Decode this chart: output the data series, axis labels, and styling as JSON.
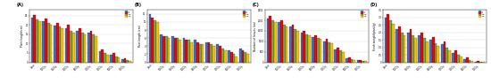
{
  "panels": [
    {
      "label": "(A)",
      "ylabel": "Plant height(cm)",
      "ylim": [
        0,
        28
      ],
      "yticks": [
        0,
        5,
        10,
        15,
        20,
        25
      ],
      "groups": [
        "Cont",
        "100Gy",
        "150Gy",
        "200Gy",
        "250Gy",
        "300Gy",
        "400Gy",
        "500Gy",
        "700Gy"
      ],
      "series": [
        {
          "label": "C-1",
          "color": "#4472C4",
          "values": [
            24.0,
            22.0,
            19.5,
            18.0,
            17.0,
            16.0,
            6.0,
            4.0,
            1.5
          ]
        },
        {
          "label": "C-2",
          "color": "#FF0000",
          "values": [
            25.5,
            23.5,
            21.0,
            20.0,
            18.0,
            17.0,
            7.0,
            5.0,
            2.0
          ]
        },
        {
          "label": "C-1B",
          "color": "#70AD47",
          "values": [
            23.0,
            21.0,
            19.0,
            17.0,
            16.0,
            15.0,
            5.0,
            3.0,
            1.0
          ]
        },
        {
          "label": "C-7B",
          "color": "#FFC000",
          "values": [
            22.0,
            20.0,
            18.0,
            16.0,
            15.0,
            14.0,
            4.0,
            2.5,
            0.5
          ]
        }
      ]
    },
    {
      "label": "(B)",
      "ylabel": "Root length (cm)",
      "ylim": [
        0,
        13
      ],
      "yticks": [
        0,
        2,
        4,
        6,
        8,
        10,
        12
      ],
      "groups": [
        "Cont",
        "100Gy",
        "150Gy",
        "200Gy",
        "250Gy",
        "300Gy",
        "400Gy",
        "500Gy",
        "700Gy"
      ],
      "series": [
        {
          "label": "C-1",
          "color": "#4472C4",
          "values": [
            12.0,
            7.0,
            6.5,
            6.0,
            5.5,
            5.0,
            4.5,
            3.0,
            3.5
          ]
        },
        {
          "label": "C-2",
          "color": "#FF0000",
          "values": [
            11.0,
            6.5,
            6.0,
            5.5,
            5.0,
            5.0,
            4.0,
            2.5,
            3.0
          ]
        },
        {
          "label": "C-1B",
          "color": "#70AD47",
          "values": [
            10.5,
            6.5,
            6.0,
            5.5,
            4.5,
            4.5,
            3.5,
            2.0,
            2.5
          ]
        },
        {
          "label": "C-7B",
          "color": "#FFC000",
          "values": [
            10.0,
            6.0,
            5.5,
            5.0,
            4.5,
            4.0,
            3.0,
            1.5,
            2.0
          ]
        }
      ]
    },
    {
      "label": "(C)",
      "ylabel": "Number of leaves (ea)",
      "ylim": [
        0,
        2500
      ],
      "yticks": [
        0,
        500,
        1000,
        1500,
        2000,
        2500
      ],
      "groups": [
        "Cont",
        "100Gy",
        "150Gy",
        "200Gy",
        "250Gy",
        "300Gy",
        "400Gy",
        "500Gy",
        "700Gy"
      ],
      "series": [
        {
          "label": "C-1",
          "color": "#4472C4",
          "values": [
            2100,
            1900,
            1700,
            1400,
            1200,
            1000,
            600,
            200,
            100
          ]
        },
        {
          "label": "C-2",
          "color": "#FF0000",
          "values": [
            2200,
            2000,
            1800,
            1500,
            1300,
            1100,
            700,
            250,
            100
          ]
        },
        {
          "label": "C-1B",
          "color": "#70AD47",
          "values": [
            2000,
            1800,
            1600,
            1350,
            1150,
            950,
            550,
            150,
            80
          ]
        },
        {
          "label": "C-7B",
          "color": "#FFC000",
          "values": [
            1900,
            1700,
            1500,
            1300,
            1100,
            900,
            500,
            100,
            60
          ]
        }
      ]
    },
    {
      "label": "(D)",
      "ylabel": "Fresh weight(plant/g)",
      "ylim": [
        0,
        3.5
      ],
      "yticks": [
        0,
        0.5,
        1.0,
        1.5,
        2.0,
        2.5,
        3.0,
        3.5
      ],
      "groups": [
        "Cont",
        "100Gy",
        "150Gy",
        "200Gy",
        "250Gy",
        "300Gy",
        "400Gy",
        "500Gy",
        "700Gy"
      ],
      "series": [
        {
          "label": "C-1",
          "color": "#4472C4",
          "values": [
            3.0,
            2.2,
            2.0,
            1.8,
            1.5,
            1.2,
            0.6,
            0.2,
            0.05
          ]
        },
        {
          "label": "C-2",
          "color": "#FF0000",
          "values": [
            3.2,
            2.4,
            2.2,
            2.0,
            1.7,
            1.4,
            0.8,
            0.3,
            0.08
          ]
        },
        {
          "label": "C-1B",
          "color": "#70AD47",
          "values": [
            2.8,
            2.0,
            1.8,
            1.6,
            1.3,
            1.0,
            0.5,
            0.15,
            0.03
          ]
        },
        {
          "label": "C-7B",
          "color": "#FFC000",
          "values": [
            2.6,
            1.8,
            1.6,
            1.4,
            1.1,
            0.8,
            0.4,
            0.1,
            0.02
          ]
        }
      ]
    }
  ],
  "fig_width": 5.5,
  "fig_height": 0.94,
  "dpi": 100,
  "background_color": "#ffffff"
}
